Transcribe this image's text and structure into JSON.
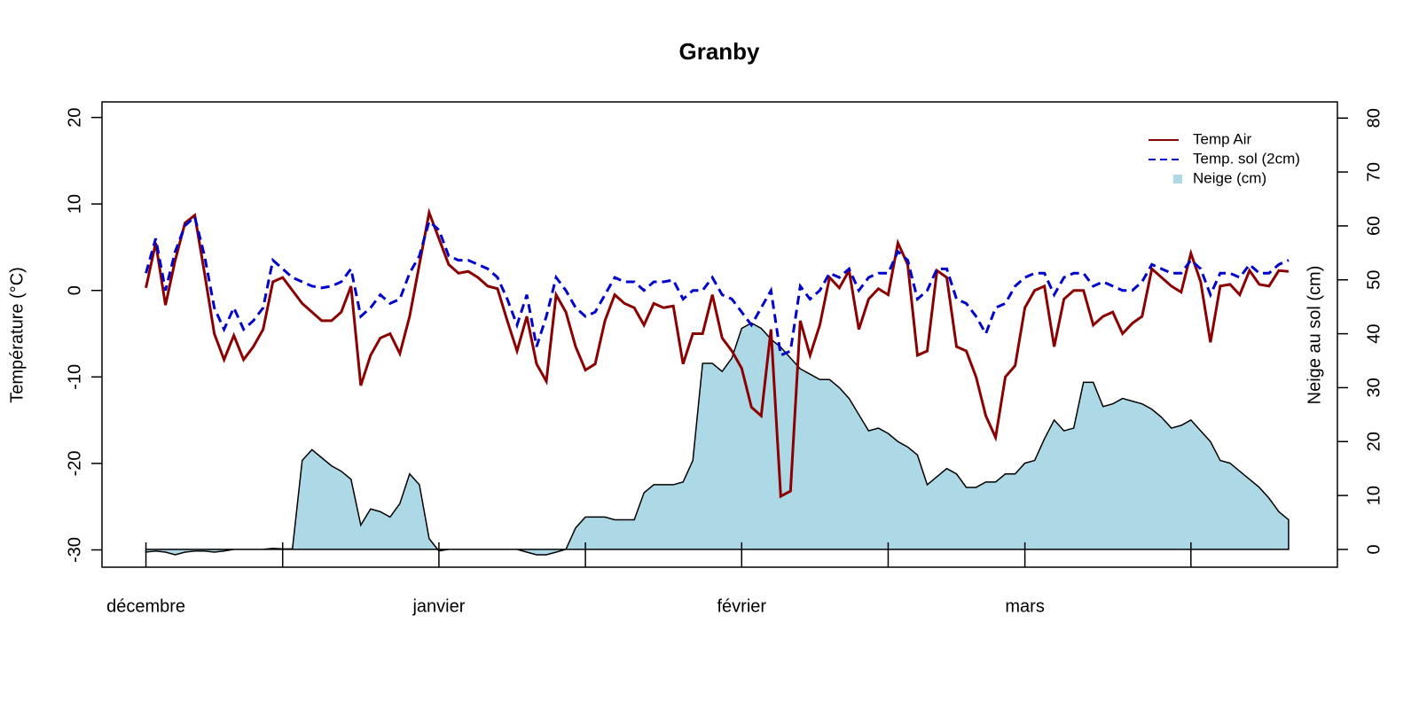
{
  "chart_data": {
    "type": "line",
    "title": "Granby",
    "ylabel": "Température (°C)",
    "y2label": "Neige au sol (cm)",
    "xlim": [
      -4.5,
      122
    ],
    "ylim": [
      -32,
      21.8
    ],
    "y2lim": [
      -3.3,
      83
    ],
    "xticks": [
      {
        "value": 0,
        "label": "décembre"
      },
      {
        "value": 30,
        "label": "janvier"
      },
      {
        "value": 61,
        "label": "février"
      },
      {
        "value": 90,
        "label": "mars"
      }
    ],
    "minor_xticks": [
      14,
      45,
      76,
      107
    ],
    "yticks": [
      -30,
      -20,
      -10,
      0,
      10,
      20
    ],
    "y2ticks": [
      0,
      10,
      20,
      30,
      40,
      50,
      60,
      70,
      80
    ],
    "legend": "top-right",
    "x": [
      0,
      1,
      2,
      3,
      4,
      5,
      6,
      7,
      8,
      9,
      10,
      11,
      12,
      13,
      14,
      15,
      16,
      17,
      18,
      19,
      20,
      21,
      22,
      23,
      24,
      25,
      26,
      27,
      28,
      29,
      30,
      31,
      32,
      33,
      34,
      35,
      36,
      37,
      38,
      39,
      40,
      41,
      42,
      43,
      44,
      45,
      46,
      47,
      48,
      49,
      50,
      51,
      52,
      53,
      54,
      55,
      56,
      57,
      58,
      59,
      60,
      61,
      62,
      63,
      64,
      65,
      66,
      67,
      68,
      69,
      70,
      71,
      72,
      73,
      74,
      75,
      76,
      77,
      78,
      79,
      80,
      81,
      82,
      83,
      84,
      85,
      86,
      87,
      88,
      89,
      90,
      91,
      92,
      93,
      94,
      95,
      96,
      97,
      98,
      99,
      100,
      101,
      102,
      103,
      104,
      105,
      106,
      107,
      108,
      109,
      110,
      111,
      112,
      113,
      114,
      115,
      116,
      117
    ],
    "series": [
      {
        "name": "Neige (cm)",
        "color": "#add8e6",
        "kind": "area",
        "axis": "y2",
        "values": [
          -0.5,
          -0.3,
          -0.5,
          -1,
          -0.5,
          -0.3,
          -0.3,
          -0.5,
          -0.3,
          0,
          0,
          0,
          0,
          0.2,
          0.1,
          0.1,
          16.5,
          18.5,
          17,
          15.5,
          14.5,
          13,
          4.5,
          7.5,
          7,
          6,
          8.5,
          14,
          12,
          2,
          -0.3,
          0,
          0,
          0,
          0,
          0,
          0,
          0,
          0,
          -0.5,
          -1,
          -1,
          -0.5,
          0,
          4,
          6,
          6,
          6,
          5.5,
          5.5,
          5.5,
          10.5,
          12,
          12,
          12,
          12.5,
          16.5,
          34.5,
          34.5,
          33,
          35.5,
          41,
          42,
          41,
          39,
          37.5,
          35.5,
          33.5,
          32.5,
          31.5,
          31.5,
          30,
          28,
          25,
          22,
          22.5,
          21.5,
          20,
          19,
          17.5,
          12,
          13.5,
          15,
          14,
          11.5,
          11.5,
          12.5,
          12.5,
          14,
          14,
          16,
          16.5,
          20.5,
          24,
          22,
          22.5,
          31,
          31,
          26.5,
          27,
          28,
          27.5,
          27,
          26,
          24.5,
          22.5,
          23,
          24,
          22,
          20,
          16.5,
          16,
          14.5,
          13,
          11.5,
          9.5,
          7,
          5.5
        ]
      },
      {
        "name": "Temp Air",
        "color": "#8b0000",
        "kind": "line",
        "dash": "solid",
        "values": [
          0.3,
          5.5,
          -1.7,
          3.5,
          7.8,
          8.7,
          2,
          -5,
          -8,
          -5.2,
          -8,
          -6.5,
          -4.5,
          1,
          1.5,
          0,
          -1.5,
          -2.5,
          -3.5,
          -3.5,
          -2.5,
          0.5,
          -11,
          -7.5,
          -5.5,
          -5,
          -7.3,
          -3,
          3,
          9,
          6,
          3,
          2,
          2.2,
          1.5,
          0.5,
          0.2,
          -3.5,
          -7,
          -3,
          -8.5,
          -10.5,
          -0.5,
          -2.5,
          -6.5,
          -9.2,
          -8.5,
          -3.5,
          -0.5,
          -1.5,
          -2,
          -4,
          -1.5,
          -2,
          -1.8,
          -8.5,
          -5,
          -5,
          -0.5,
          -5.5,
          -7,
          -9,
          -13.5,
          -14.5,
          -4.5,
          -23.8,
          -23.2,
          -3.5,
          -7.5,
          -4,
          1.5,
          0.3,
          2.3,
          -4.5,
          -1,
          0.2,
          -0.5,
          5.5,
          3,
          -7.5,
          -7,
          2.3,
          1.5,
          -6.5,
          -7,
          -10,
          -14.5,
          -17,
          -10,
          -8.7,
          -2,
          0,
          0.5,
          -6.5,
          -1,
          0,
          0,
          -4,
          -3,
          -2.5,
          -5,
          -3.8,
          -3,
          2.5,
          1.5,
          0.5,
          -0.2,
          4.3,
          1,
          -6,
          0.5,
          0.7,
          -0.5,
          2.3,
          0.7,
          0.5,
          2.3,
          2.2
        ]
      },
      {
        "name": "Temp. sol (2cm)",
        "color": "#0000cd",
        "kind": "line",
        "dash": "dashed",
        "values": [
          2,
          6,
          0,
          4.5,
          7.5,
          8.5,
          4,
          -2,
          -4.5,
          -2,
          -4.5,
          -3.5,
          -2,
          3.5,
          2.5,
          1.5,
          1,
          0.5,
          0.3,
          0.5,
          1,
          2.5,
          -3,
          -2,
          -0.5,
          -1.5,
          -1,
          2,
          4,
          8,
          7,
          4,
          3.5,
          3.5,
          3,
          2.5,
          1.5,
          -1,
          -4,
          -0.5,
          -6.5,
          -3,
          1.5,
          0,
          -2,
          -3,
          -2.5,
          -0.5,
          1.5,
          1,
          1,
          0,
          1,
          1,
          1.2,
          -1,
          0,
          0,
          1.5,
          -0.5,
          -1,
          -2.5,
          -4,
          -2,
          0,
          -7.5,
          -7,
          0.5,
          -1,
          0,
          2,
          1.5,
          2.5,
          0,
          1.5,
          2,
          2,
          4.5,
          3.5,
          -1,
          0,
          2.5,
          2.5,
          -1,
          -1.5,
          -3,
          -5,
          -2,
          -1.5,
          0.5,
          1.5,
          2,
          2,
          -0.5,
          1.5,
          2,
          2,
          0.5,
          1,
          0.5,
          0,
          0,
          1,
          3,
          2.5,
          2,
          2,
          3.5,
          2.5,
          -0.5,
          2,
          2,
          1.5,
          3,
          2,
          2,
          3,
          3.5
        ]
      }
    ]
  }
}
